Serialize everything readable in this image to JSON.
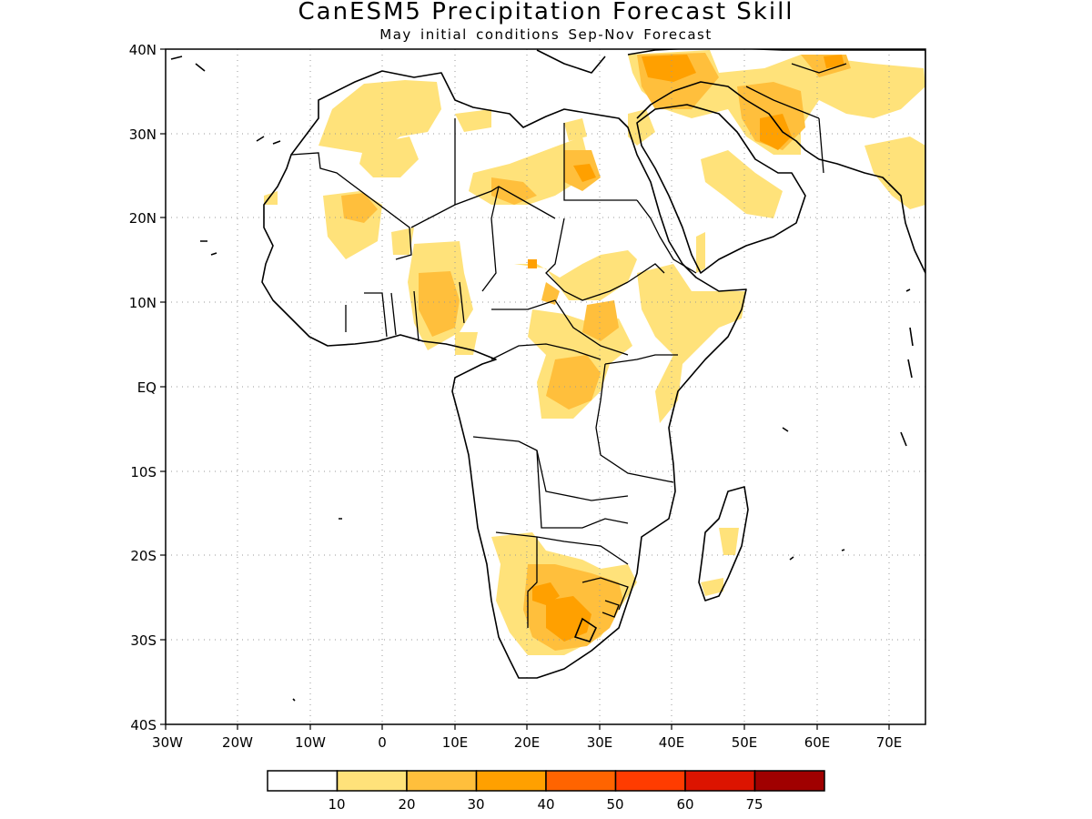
{
  "title": "CanESM5 Precipitation Forecast Skill",
  "subtitle": "May initial conditions  Sep-Nov Forecast",
  "map": {
    "lon_ticks": [
      "30W",
      "20W",
      "10W",
      "0",
      "10E",
      "20E",
      "30E",
      "40E",
      "50E",
      "60E",
      "70E"
    ],
    "lat_ticks": [
      "40N",
      "30N",
      "20N",
      "10N",
      "EQ",
      "10S",
      "20S",
      "30S",
      "40S"
    ],
    "lon_range": [
      -30,
      75
    ],
    "lat_range": [
      -40,
      40
    ],
    "gridlines": "dotted"
  },
  "legend": {
    "labels": [
      "10",
      "20",
      "30",
      "40",
      "50",
      "60",
      "75"
    ],
    "colors": [
      "#ffffff",
      "#ffe27a",
      "#ffbf3c",
      "#ffa000",
      "#ff6400",
      "#ff3c00",
      "#dc1400",
      "#a00000"
    ]
  }
}
